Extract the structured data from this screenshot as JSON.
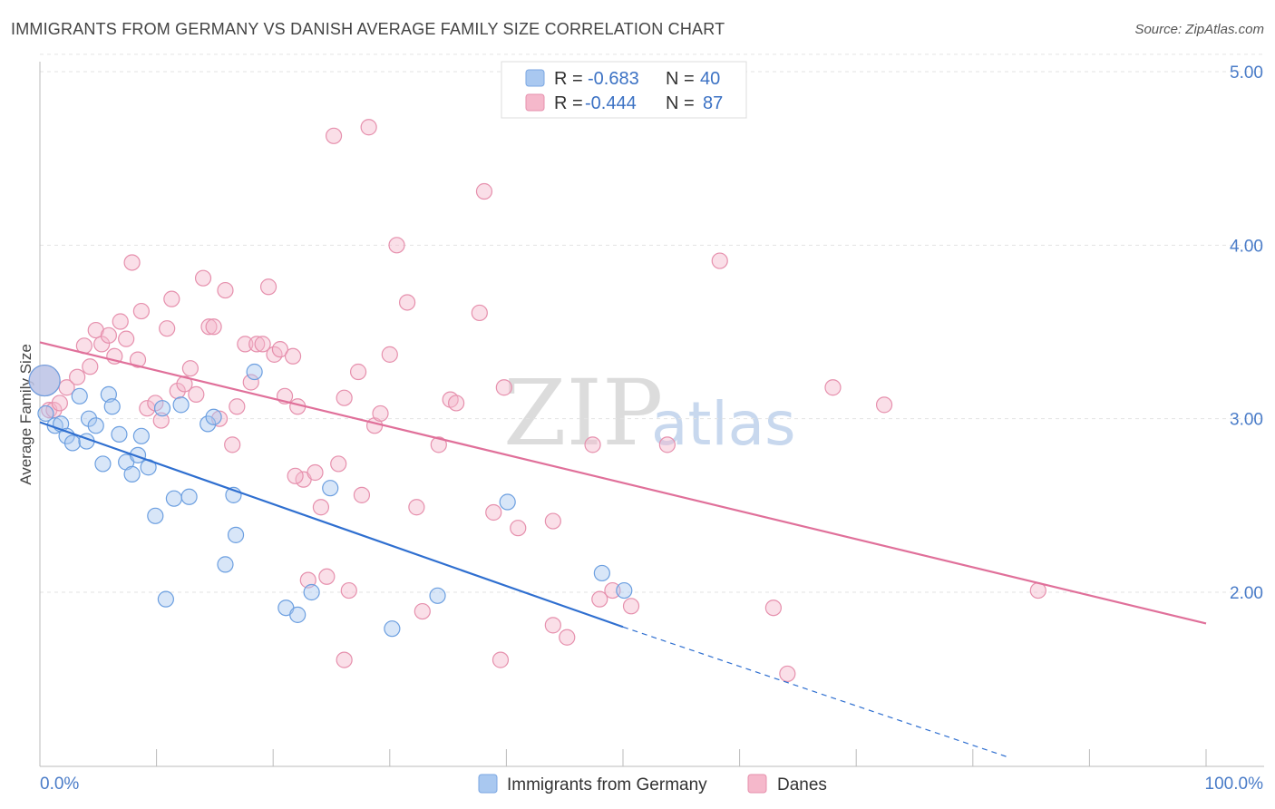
{
  "title": "IMMIGRANTS FROM GERMANY VS DANISH AVERAGE FAMILY SIZE CORRELATION CHART",
  "source": "Source: ZipAtlas.com",
  "watermark": {
    "zip": "ZIP",
    "atlas": "atlas"
  },
  "legend": {
    "rows": [
      {
        "r_label": "R =",
        "r_value": "-0.683",
        "n_label": "N =",
        "n_value": "40",
        "color": "#a9c8f0"
      },
      {
        "r_label": "R =",
        "r_value": "-0.444",
        "n_label": "N =",
        "n_value": "87",
        "color": "#f5b8cb"
      }
    ]
  },
  "bottom_legend": [
    {
      "label": "Immigrants from Germany",
      "color": "#a9c8f0"
    },
    {
      "label": "Danes",
      "color": "#f5b8cb"
    }
  ],
  "chart_data": {
    "type": "scatter",
    "title": "IMMIGRANTS FROM GERMANY VS DANISH AVERAGE FAMILY SIZE CORRELATION CHART",
    "xlabel": "",
    "ylabel": "Average Family Size",
    "xlim": [
      0,
      100
    ],
    "ylim": [
      1.05,
      5.05
    ],
    "x_tick_labels": [
      "0.0%",
      "100.0%"
    ],
    "y_ticks": [
      2.0,
      3.0,
      4.0,
      5.0
    ],
    "y_tick_labels": [
      "2.00",
      "3.00",
      "4.00",
      "5.00"
    ],
    "grid": true,
    "legend_position": "top-center",
    "series": [
      {
        "name": "Immigrants from Germany",
        "color": "#a9c8f0",
        "stroke": "#6c9fe0",
        "trend": {
          "x": [
            0,
            50
          ],
          "y": [
            2.98,
            1.8
          ],
          "color": "#2f6fd0",
          "dashed_to": [
            83,
            1.05
          ]
        },
        "points": [
          [
            0.4,
            3.22
          ],
          [
            0.5,
            3.03
          ],
          [
            1.3,
            2.96
          ],
          [
            1.8,
            2.97
          ],
          [
            2.3,
            2.9
          ],
          [
            2.8,
            2.86
          ],
          [
            3.4,
            3.13
          ],
          [
            4.0,
            2.87
          ],
          [
            4.2,
            3.0
          ],
          [
            4.8,
            2.96
          ],
          [
            5.4,
            2.74
          ],
          [
            5.9,
            3.14
          ],
          [
            6.2,
            3.07
          ],
          [
            6.8,
            2.91
          ],
          [
            7.4,
            2.75
          ],
          [
            7.9,
            2.68
          ],
          [
            8.4,
            2.79
          ],
          [
            8.7,
            2.9
          ],
          [
            9.3,
            2.72
          ],
          [
            9.9,
            2.44
          ],
          [
            10.5,
            3.06
          ],
          [
            10.8,
            1.96
          ],
          [
            11.5,
            2.54
          ],
          [
            12.1,
            3.08
          ],
          [
            12.8,
            2.55
          ],
          [
            14.4,
            2.97
          ],
          [
            14.9,
            3.01
          ],
          [
            15.9,
            2.16
          ],
          [
            16.6,
            2.56
          ],
          [
            16.8,
            2.33
          ],
          [
            18.4,
            3.27
          ],
          [
            21.1,
            1.91
          ],
          [
            22.1,
            1.87
          ],
          [
            23.3,
            2.0
          ],
          [
            24.9,
            2.6
          ],
          [
            30.2,
            1.79
          ],
          [
            34.1,
            1.98
          ],
          [
            40.1,
            2.52
          ],
          [
            48.2,
            2.11
          ],
          [
            50.1,
            2.01
          ]
        ]
      },
      {
        "name": "Danes",
        "color": "#f5b8cb",
        "stroke": "#e690ad",
        "trend": {
          "x": [
            0,
            100
          ],
          "y": [
            3.44,
            1.82
          ],
          "color": "#e0709a"
        },
        "points": [
          [
            0.4,
            3.22
          ],
          [
            0.8,
            3.05
          ],
          [
            1.2,
            3.05
          ],
          [
            1.7,
            3.09
          ],
          [
            2.3,
            3.18
          ],
          [
            3.2,
            3.24
          ],
          [
            3.8,
            3.42
          ],
          [
            4.3,
            3.3
          ],
          [
            4.8,
            3.51
          ],
          [
            5.3,
            3.43
          ],
          [
            5.9,
            3.48
          ],
          [
            6.4,
            3.36
          ],
          [
            6.9,
            3.56
          ],
          [
            7.4,
            3.46
          ],
          [
            7.9,
            3.9
          ],
          [
            8.4,
            3.34
          ],
          [
            8.7,
            3.62
          ],
          [
            9.2,
            3.06
          ],
          [
            9.9,
            3.09
          ],
          [
            10.4,
            2.99
          ],
          [
            10.9,
            3.52
          ],
          [
            11.3,
            3.69
          ],
          [
            11.8,
            3.16
          ],
          [
            12.4,
            3.2
          ],
          [
            12.9,
            3.29
          ],
          [
            13.4,
            3.14
          ],
          [
            14.0,
            3.81
          ],
          [
            14.5,
            3.53
          ],
          [
            14.9,
            3.53
          ],
          [
            15.4,
            3.0
          ],
          [
            15.9,
            3.74
          ],
          [
            16.5,
            2.85
          ],
          [
            16.9,
            3.07
          ],
          [
            17.6,
            3.43
          ],
          [
            18.1,
            3.21
          ],
          [
            18.6,
            3.43
          ],
          [
            19.1,
            3.43
          ],
          [
            19.6,
            3.76
          ],
          [
            20.1,
            3.37
          ],
          [
            20.6,
            3.4
          ],
          [
            21.0,
            3.13
          ],
          [
            21.7,
            3.36
          ],
          [
            22.1,
            3.07
          ],
          [
            22.6,
            2.65
          ],
          [
            23.0,
            2.07
          ],
          [
            23.6,
            2.69
          ],
          [
            24.1,
            2.49
          ],
          [
            24.6,
            2.09
          ],
          [
            25.2,
            4.63
          ],
          [
            25.6,
            2.74
          ],
          [
            26.1,
            3.12
          ],
          [
            26.5,
            2.01
          ],
          [
            27.3,
            3.27
          ],
          [
            27.6,
            2.56
          ],
          [
            28.2,
            4.68
          ],
          [
            28.7,
            2.96
          ],
          [
            29.2,
            3.03
          ],
          [
            30.0,
            3.37
          ],
          [
            30.6,
            4.0
          ],
          [
            31.5,
            3.67
          ],
          [
            32.3,
            2.49
          ],
          [
            32.8,
            1.89
          ],
          [
            34.2,
            2.85
          ],
          [
            35.2,
            3.11
          ],
          [
            35.7,
            3.09
          ],
          [
            37.7,
            3.61
          ],
          [
            38.1,
            4.31
          ],
          [
            38.9,
            2.46
          ],
          [
            39.5,
            1.61
          ],
          [
            39.8,
            3.18
          ],
          [
            41.0,
            2.37
          ],
          [
            44.0,
            2.41
          ],
          [
            44.0,
            1.81
          ],
          [
            45.2,
            1.74
          ],
          [
            47.4,
            2.85
          ],
          [
            48.0,
            1.96
          ],
          [
            49.1,
            2.01
          ],
          [
            50.7,
            1.92
          ],
          [
            53.8,
            2.85
          ],
          [
            58.3,
            3.91
          ],
          [
            62.9,
            1.91
          ],
          [
            64.1,
            1.53
          ],
          [
            68.0,
            3.18
          ],
          [
            72.4,
            3.08
          ],
          [
            85.6,
            2.01
          ],
          [
            26.1,
            1.61
          ],
          [
            21.9,
            2.67
          ]
        ]
      }
    ]
  }
}
